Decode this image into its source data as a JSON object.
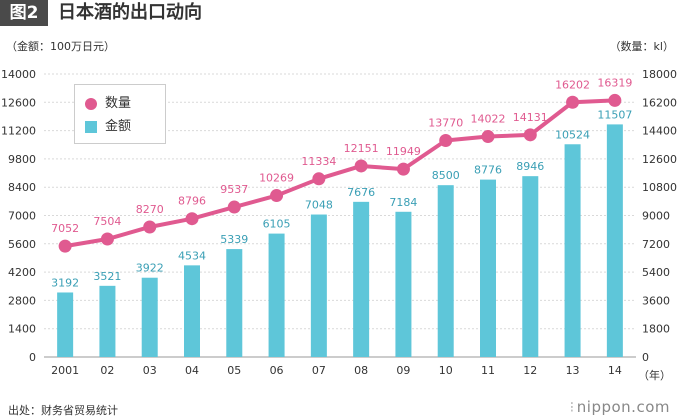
{
  "header": {
    "fig_label": "图2",
    "title": "日本酒的出口动向"
  },
  "units": {
    "left": "（金额：100万日元）",
    "right": "（数量：kl）"
  },
  "source": "出处：财务省贸易统计",
  "logo": {
    "dots": "⁝",
    "text": "nippon.com"
  },
  "chart_data": {
    "type": "bar+line",
    "categories": [
      "2001",
      "02",
      "03",
      "04",
      "05",
      "06",
      "07",
      "08",
      "09",
      "10",
      "11",
      "12",
      "13",
      "14"
    ],
    "x_unit_label": "（年）",
    "series": [
      {
        "name": "金额",
        "type": "bar",
        "axis": "left",
        "values": [
          3192,
          3521,
          3922,
          4534,
          5339,
          6105,
          7048,
          7676,
          7184,
          8500,
          8776,
          8946,
          10524,
          11507
        ],
        "color": "#5ec6d9",
        "label_color": "#3a9fb5"
      },
      {
        "name": "数量",
        "type": "line",
        "axis": "right",
        "values": [
          7052,
          7504,
          8270,
          8796,
          9537,
          10269,
          11334,
          12151,
          11949,
          13770,
          14022,
          14131,
          16202,
          16319
        ],
        "color": "#e05a90",
        "label_color": "#e05a90"
      }
    ],
    "left_axis": {
      "min": 0,
      "max": 14000,
      "ticks": [
        0,
        1400,
        2800,
        4200,
        5600,
        7000,
        8400,
        9800,
        11200,
        12600,
        14000
      ]
    },
    "right_axis": {
      "min": 0,
      "max": 18000,
      "ticks": [
        0,
        1800,
        3600,
        5400,
        7200,
        9000,
        10800,
        12600,
        14400,
        16200,
        18000
      ]
    },
    "grid": true,
    "legend_position": "top-left"
  }
}
